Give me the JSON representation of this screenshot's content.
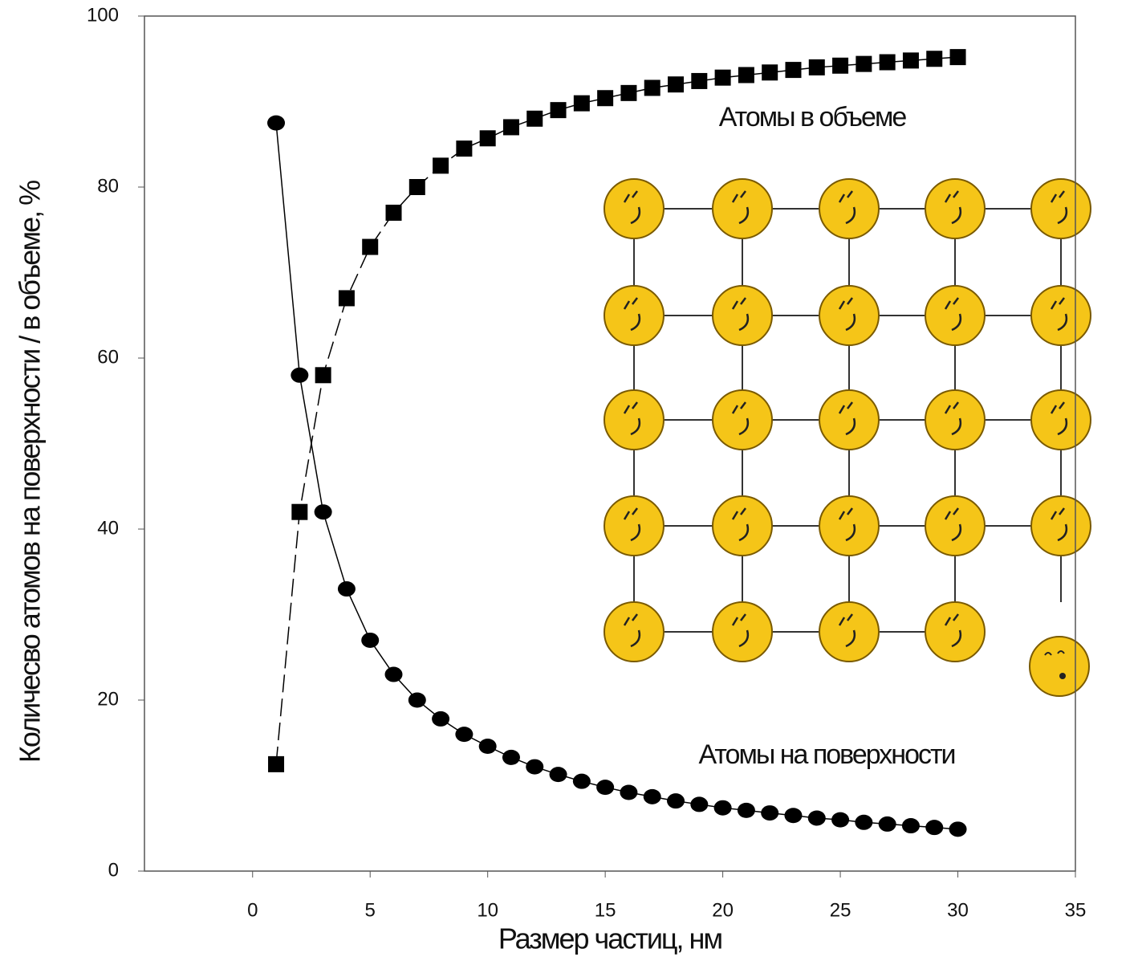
{
  "chart_data": {
    "type": "line",
    "xlabel": "Размер  частиц, нм",
    "ylabel": "Количесво атомов на поверхности / в объеме, %",
    "annotations": [
      "Атомы в объеме",
      "Атомы на поверхности"
    ],
    "x": [
      1,
      2,
      3,
      4,
      5,
      6,
      7,
      8,
      9,
      10,
      11,
      12,
      13,
      14,
      15,
      16,
      17,
      18,
      19,
      20,
      21,
      22,
      23,
      24,
      25,
      26,
      27,
      28,
      29,
      30
    ],
    "series": [
      {
        "color": "#000000",
        "marker": "circle",
        "linestyle": "solid",
        "values": [
          87.5,
          58,
          42,
          33,
          27,
          23,
          20,
          17.8,
          16,
          14.6,
          13.3,
          12.2,
          11.3,
          10.5,
          9.8,
          9.2,
          8.7,
          8.2,
          7.8,
          7.4,
          7.1,
          6.8,
          6.5,
          6.2,
          6.0,
          5.7,
          5.5,
          5.3,
          5.1,
          4.9
        ]
      },
      {
        "color": "#000000",
        "marker": "square",
        "linestyle": "dashed",
        "values": [
          12.5,
          42,
          58,
          67,
          73,
          77,
          80,
          82.5,
          84.5,
          85.7,
          87,
          88,
          89,
          89.8,
          90.4,
          91,
          91.6,
          92,
          92.4,
          92.8,
          93.1,
          93.4,
          93.7,
          94,
          94.2,
          94.4,
          94.6,
          94.8,
          95,
          95.2
        ]
      }
    ],
    "xlim": [
      -4.6,
      35
    ],
    "ylim": [
      0,
      100
    ],
    "xticks": [
      0,
      5,
      10,
      15,
      20,
      25,
      30,
      35
    ],
    "yticks": [
      0,
      20,
      40,
      60,
      80,
      100
    ],
    "grid": false
  }
}
